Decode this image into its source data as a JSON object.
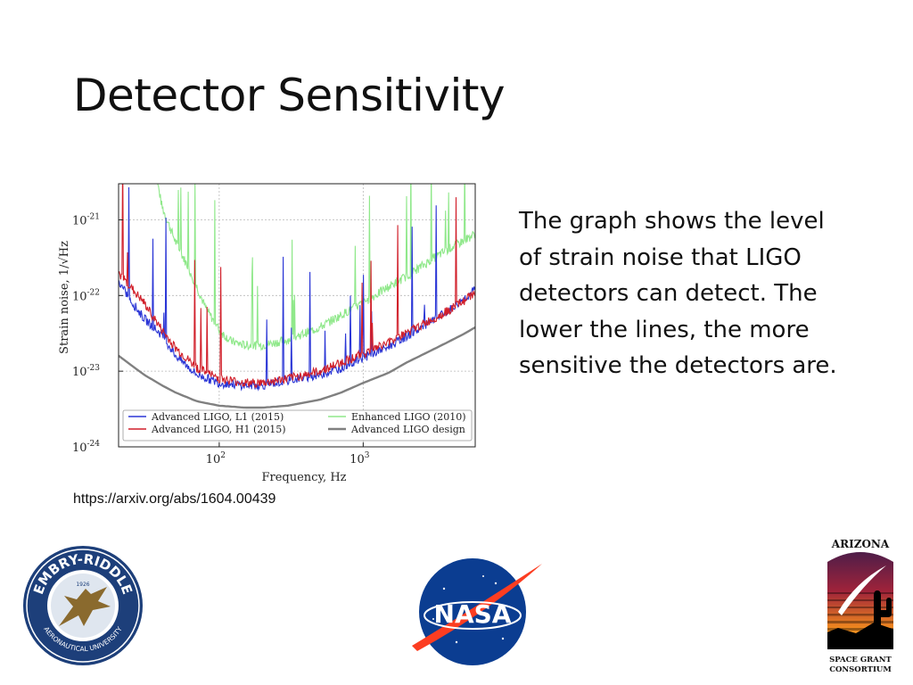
{
  "slide": {
    "title": "Detector Sensitivity",
    "body": "The graph shows the level of strain noise that LIGO detectors can detect.  The lower the lines, the more sensitive the detectors are.",
    "source": "https://arxiv.org/abs/1604.00439"
  },
  "logos": {
    "erau": {
      "top_text": "EMBRY-RIDDLE",
      "bottom_text": "AERONAUTICAL UNIVERSITY",
      "year": "1926"
    },
    "nasa": {
      "text": "NASA"
    },
    "azsg": {
      "top_text": "ARIZONA",
      "bottom_text_1": "SPACE GRANT",
      "bottom_text_2": "CONSORTIUM"
    }
  },
  "chart_data": {
    "type": "line",
    "xlabel": "Frequency, Hz",
    "ylabel": "Strain noise, 1/√Hz",
    "x_scale": "log",
    "y_scale": "log",
    "xlim": [
      20,
      6000
    ],
    "ylim": [
      1e-24,
      3e-21
    ],
    "grid": true,
    "legend_position": "bottom",
    "x_ticks": [
      {
        "value": 100,
        "label": "10",
        "exp": "2"
      },
      {
        "value": 1000,
        "label": "10",
        "exp": "3"
      }
    ],
    "y_ticks": [
      {
        "value": 1e-21,
        "label": "10",
        "exp": "-21"
      },
      {
        "value": 1e-22,
        "label": "10",
        "exp": "-22"
      },
      {
        "value": 1e-23,
        "label": "10",
        "exp": "-23"
      },
      {
        "value": 1e-24,
        "label": "10",
        "exp": "-24"
      }
    ],
    "series": [
      {
        "name": "Advanced LIGO, L1 (2015)",
        "color": "#2b36d6",
        "x": [
          20,
          25,
          30,
          40,
          50,
          70,
          100,
          150,
          200,
          300,
          500,
          700,
          1000,
          1500,
          2000,
          3000,
          4000,
          5000,
          6000
        ],
        "y": [
          1.5e-22,
          8e-23,
          5e-23,
          3e-23,
          1.6e-23,
          9e-24,
          7e-24,
          6.5e-24,
          6.5e-24,
          7.5e-24,
          9e-24,
          1.1e-23,
          1.5e-23,
          2.1e-23,
          2.9e-23,
          4.5e-23,
          6.5e-23,
          9e-23,
          1.2e-22
        ]
      },
      {
        "name": "Advanced LIGO, H1 (2015)",
        "color": "#d11f2a",
        "x": [
          20,
          25,
          30,
          40,
          50,
          70,
          100,
          150,
          200,
          300,
          500,
          700,
          1000,
          1500,
          2000,
          3000,
          4000,
          5000,
          6000
        ],
        "y": [
          2e-22,
          1.2e-22,
          8e-23,
          3.5e-23,
          2e-23,
          1.1e-23,
          8e-24,
          7e-24,
          7e-24,
          8e-24,
          1e-23,
          1.3e-23,
          1.7e-23,
          2.4e-23,
          3.2e-23,
          4.8e-23,
          6.5e-23,
          8.5e-23,
          1.1e-22
        ]
      },
      {
        "name": "Enhanced LIGO (2010)",
        "color": "#8fe88a",
        "x": [
          35,
          40,
          50,
          60,
          70,
          80,
          100,
          120,
          150,
          200,
          300,
          500,
          700,
          1000,
          1500,
          2000,
          3000,
          4000,
          6000
        ],
        "y": [
          6e-21,
          1.5e-21,
          5e-22,
          2.5e-22,
          1.3e-22,
          7e-23,
          3.5e-23,
          2.5e-23,
          2.2e-23,
          2.2e-23,
          2.6e-23,
          3.8e-23,
          5.5e-23,
          8e-23,
          1.3e-22,
          1.8e-22,
          3e-22,
          4.2e-22,
          6.5e-22
        ]
      },
      {
        "name": "Advanced LIGO design",
        "color": "#808080",
        "x": [
          20,
          30,
          40,
          50,
          70,
          100,
          150,
          200,
          300,
          500,
          700,
          1000,
          1500,
          2000,
          3000,
          4000,
          5000,
          6000
        ],
        "y": [
          1.6e-23,
          9e-24,
          6.5e-24,
          5.2e-24,
          4e-24,
          3.5e-24,
          3.3e-24,
          3.3e-24,
          3.5e-24,
          4.2e-24,
          5.2e-24,
          7e-24,
          9.5e-24,
          1.3e-23,
          1.9e-23,
          2.5e-23,
          3.1e-23,
          3.8e-23
        ]
      }
    ],
    "legend": [
      {
        "name": "Advanced LIGO, L1 (2015)",
        "color": "#2b36d6"
      },
      {
        "name": "Enhanced LIGO (2010)",
        "color": "#8fe88a"
      },
      {
        "name": "Advanced LIGO, H1 (2015)",
        "color": "#d11f2a"
      },
      {
        "name": "Advanced LIGO design",
        "color": "#808080"
      }
    ]
  }
}
